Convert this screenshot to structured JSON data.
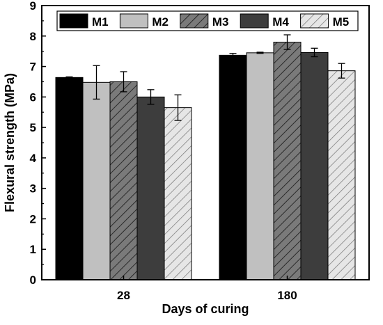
{
  "chart_data": {
    "type": "bar",
    "xlabel": "Days of curing",
    "ylabel": "Flexural strength (MPa)",
    "ylim": [
      0,
      9
    ],
    "yticks": [
      0,
      1,
      2,
      3,
      4,
      5,
      6,
      7,
      8,
      9
    ],
    "categories": [
      "28",
      "180"
    ],
    "legend_position": "top",
    "grid": false,
    "series": [
      {
        "name": "M1",
        "values": [
          6.64,
          7.37
        ],
        "errors": [
          0.02,
          0.06
        ],
        "color": "#000000",
        "pattern": "solid"
      },
      {
        "name": "M2",
        "values": [
          6.48,
          7.45
        ],
        "errors": [
          0.55,
          0.02
        ],
        "color": "#c0c0c0",
        "pattern": "solid"
      },
      {
        "name": "M3",
        "values": [
          6.5,
          7.8
        ],
        "errors": [
          0.33,
          0.24
        ],
        "color": "#7a7a7a",
        "pattern": "hatch-dark"
      },
      {
        "name": "M4",
        "values": [
          6.0,
          7.46
        ],
        "errors": [
          0.24,
          0.14
        ],
        "color": "#3d3d3d",
        "pattern": "solid"
      },
      {
        "name": "M5",
        "values": [
          5.65,
          6.86
        ],
        "errors": [
          0.42,
          0.24
        ],
        "color": "#dcdcdc",
        "pattern": "hatch-light"
      }
    ]
  }
}
